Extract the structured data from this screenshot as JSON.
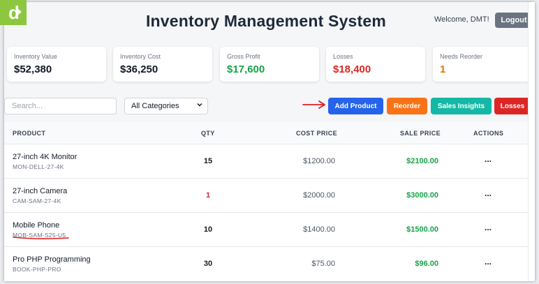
{
  "header": {
    "title": "Inventory Management System",
    "welcome": "Welcome, DMT!",
    "logout_label": "Logout"
  },
  "stats": [
    {
      "label": "Inventory Value",
      "value": "$52,380",
      "color": "#111827"
    },
    {
      "label": "Inventory Cost",
      "value": "$36,250",
      "color": "#111827"
    },
    {
      "label": "Gross Profit",
      "value": "$17,600",
      "color": "#16a34a"
    },
    {
      "label": "Losses",
      "value": "$18,400",
      "color": "#dc2626"
    },
    {
      "label": "Needs Reorder",
      "value": "1",
      "color": "#d97706"
    }
  ],
  "toolbar": {
    "search_placeholder": "Search...",
    "category_selected": "All Categories",
    "add_product_label": "Add Product",
    "reorder_label": "Reorder",
    "sales_insights_label": "Sales Insights",
    "losses_label": "Losses"
  },
  "colors": {
    "add_product": "#2563eb",
    "reorder": "#f97316",
    "sales_insights": "#14b8a6",
    "losses": "#dc2626",
    "annotation": "#e11d1d",
    "logo": "#8dc63f"
  },
  "logo": {
    "letter": "d"
  },
  "table": {
    "headers": {
      "product": "PRODUCT",
      "qty": "QTY",
      "cost": "COST PRICE",
      "sale": "SALE PRICE",
      "actions": "ACTIONS"
    },
    "rows": [
      {
        "name": "27-inch 4K Monitor",
        "sku": "MON-DELL-27-4K",
        "qty": "15",
        "cost": "$1200.00",
        "sale": "$2100.00",
        "actions": "..."
      },
      {
        "name": "27-inch Camera",
        "sku": "CAM-SAM-27-4K",
        "qty": "1",
        "cost": "$2000.00",
        "sale": "$3000.00",
        "actions": "..."
      },
      {
        "name": "Mobile Phone",
        "sku": "MOB-SAM-S25-U5",
        "qty": "10",
        "cost": "$1400.00",
        "sale": "$1500.00",
        "actions": "..."
      },
      {
        "name": "Pro PHP Programming",
        "sku": "BOOK-PHP-PRO",
        "qty": "30",
        "cost": "$75.00",
        "sale": "$96.00",
        "actions": "..."
      }
    ]
  }
}
